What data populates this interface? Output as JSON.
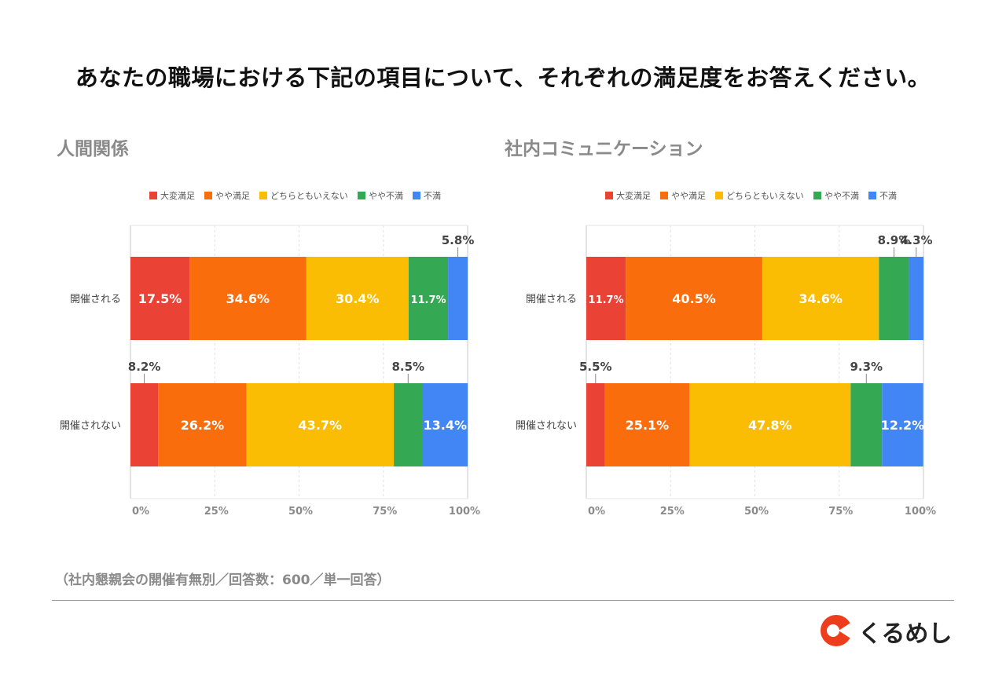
{
  "header": {
    "title": "あなたの職場における下記の項目について、それぞれの満足度をお答えください。"
  },
  "legend_colors": [
    "#ea4335",
    "#fa6d0d",
    "#fbbc04",
    "#34a853",
    "#4285f4"
  ],
  "chart_data": [
    {
      "type": "bar",
      "orientation": "horizontal-stacked-100",
      "title": "人間関係",
      "legend": [
        "大変満足",
        "やや満足",
        "どちらともいえない",
        "やや不満",
        "不満"
      ],
      "categories": [
        "開催される",
        "開催されない"
      ],
      "series": [
        {
          "name": "大変満足",
          "values": [
            17.5,
            8.2
          ]
        },
        {
          "name": "やや満足",
          "values": [
            34.6,
            26.2
          ]
        },
        {
          "name": "どちらともいえない",
          "values": [
            30.4,
            43.7
          ]
        },
        {
          "name": "やや不満",
          "values": [
            11.7,
            8.5
          ]
        },
        {
          "name": "不満",
          "values": [
            5.8,
            13.4
          ]
        }
      ],
      "data_labels": [
        [
          "17.5%",
          "34.6%",
          "30.4%",
          "11.7%",
          "5.8%"
        ],
        [
          "8.2%",
          "26.2%",
          "43.7%",
          "8.5%",
          "13.4%"
        ]
      ],
      "xticks": [
        "0%",
        "25%",
        "50%",
        "75%",
        "100%"
      ],
      "xlim": [
        0,
        100
      ],
      "grid": true,
      "legend_position": "top"
    },
    {
      "type": "bar",
      "orientation": "horizontal-stacked-100",
      "title": "社内コミュニケーション",
      "legend": [
        "大変満足",
        "やや満足",
        "どちらともいえない",
        "やや不満",
        "不満"
      ],
      "categories": [
        "開催される",
        "開催されない"
      ],
      "series": [
        {
          "name": "大変満足",
          "values": [
            11.7,
            5.5
          ]
        },
        {
          "name": "やや満足",
          "values": [
            40.5,
            25.1
          ]
        },
        {
          "name": "どちらともいえない",
          "values": [
            34.6,
            47.8
          ]
        },
        {
          "name": "やや不満",
          "values": [
            8.9,
            9.3
          ]
        },
        {
          "name": "不満",
          "values": [
            4.3,
            12.2
          ]
        }
      ],
      "data_labels": [
        [
          "11.7%",
          "40.5%",
          "34.6%",
          "8.9%",
          "4.3%"
        ],
        [
          "5.5%",
          "25.1%",
          "47.8%",
          "9.3%",
          "12.2%"
        ]
      ],
      "xticks": [
        "0%",
        "25%",
        "50%",
        "75%",
        "100%"
      ],
      "xlim": [
        0,
        100
      ],
      "grid": true,
      "legend_position": "top"
    }
  ],
  "footer": {
    "note": "（社内懇親会の開催有無別／回答数：600／単一回答）",
    "logo_text": "くるめし"
  }
}
